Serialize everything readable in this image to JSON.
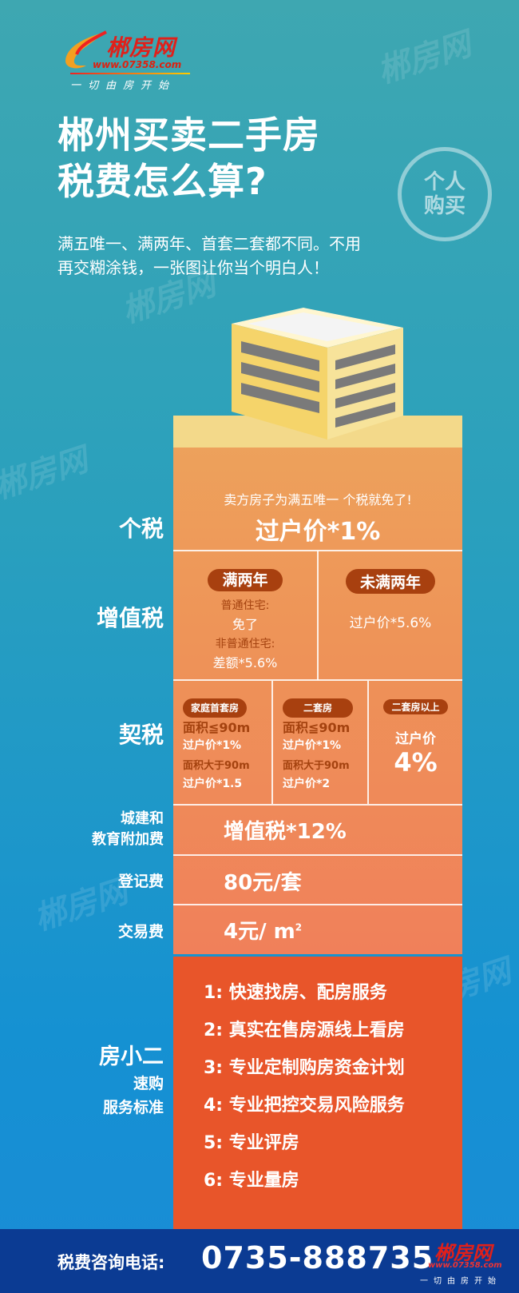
{
  "logo": {
    "name": "郴房网",
    "url": "www.07358.com",
    "slogan": "一切由房开始"
  },
  "title": [
    "郴州买卖二手房",
    "税费怎么算?"
  ],
  "badge": "个人购买",
  "subtitle": "满五唯一、满两年、首套二套都不同。不用再交糊涂钱，一张图让你当个明白人！",
  "personal_tax": {
    "label": "个税",
    "note": "卖方房子为满五唯一 个税就免了!",
    "value": "过户价*1%"
  },
  "vat": {
    "label": "增值税",
    "over2": {
      "tag": "满两年",
      "l1": "普通住宅:",
      "v1": "免了",
      "l2": "非普通住宅:",
      "v2": "差额*5.6%"
    },
    "under2": {
      "tag": "未满两年",
      "value": "过户价*5.6%"
    }
  },
  "deed": {
    "label": "契税",
    "first": {
      "tag": "家庭首套房",
      "a1": "面积≦90m",
      "v1": "过户价*1%",
      "a2": "面积大于90m",
      "v2": "过户价*1.5"
    },
    "second": {
      "tag": "二套房",
      "a1": "面积≦90m",
      "v1": "过户价*1%",
      "a2": "面积大于90m",
      "v2": "过户价*2"
    },
    "more": {
      "tag": "二套房以上",
      "v1": "过户价",
      "v2": "4%"
    }
  },
  "surcharge": {
    "label1": "城建和",
    "label2": "教育附加费",
    "value": "增值税*12%"
  },
  "registration": {
    "label": "登记费",
    "value": "80元/套"
  },
  "transaction": {
    "label": "交易费",
    "value": "4元/ m",
    "sup": "2"
  },
  "service": {
    "label": "房小二",
    "sub1": "速购",
    "sub2": "服务标准",
    "items": [
      "1:  快速找房、配房服务",
      "2:  真实在售房源线上看房",
      "3:  专业定制购房资金计划",
      "4:  专业把控交易风险服务",
      "5:  专业评房",
      "6:  专业量房"
    ]
  },
  "footer": {
    "label": "税费咨询电话:",
    "phone": "0735-888735"
  },
  "colors": {
    "orange_top": "#eda35c",
    "orange_bottom": "#f0805a",
    "service": "#e8552a",
    "footer": "#0b3b93",
    "pill": "#a8400f"
  }
}
